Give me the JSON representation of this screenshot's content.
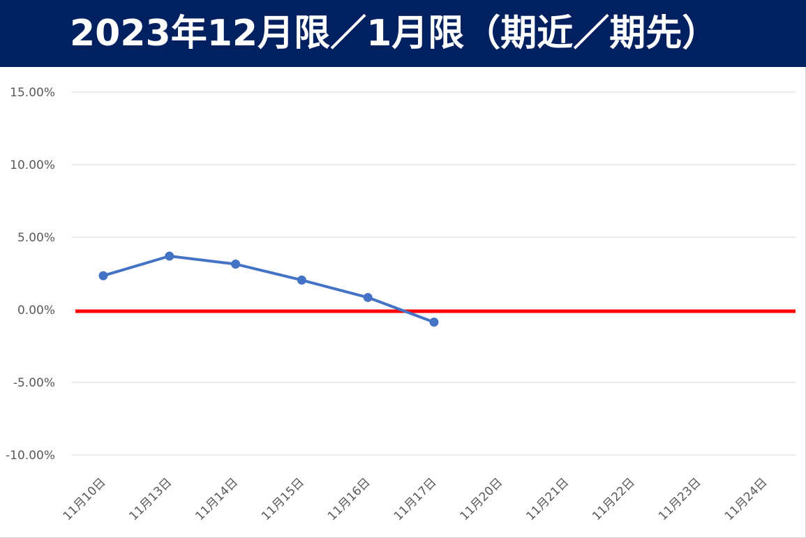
{
  "title": "2023年12月限／1月限（期近／期先）",
  "colors": {
    "title_background": "#002060",
    "title_text": "#ffffff",
    "series_line": "#4472C4",
    "zero_line": "#ff0000",
    "grid": "#d9d9d9",
    "tick_text": "#595959"
  },
  "chart_data": {
    "type": "line",
    "title": "2023年12月限／1月限（期近／期先）",
    "xlabel": "",
    "ylabel": "",
    "categories": [
      "11月10日",
      "11月13日",
      "11月14日",
      "11月15日",
      "11月16日",
      "11月17日",
      "11月20日",
      "11月21日",
      "11月22日",
      "11月23日",
      "11月24日"
    ],
    "series": [
      {
        "values": [
          0.0235,
          0.037,
          0.0315,
          0.0205,
          0.0085,
          -0.0085,
          null,
          null,
          null,
          null,
          null
        ],
        "color": "#4472C4"
      }
    ],
    "reference_line": {
      "value": 0.0,
      "color": "#ff0000"
    },
    "ylim": [
      -0.1,
      0.15
    ],
    "yticks": [
      -0.1,
      -0.05,
      0.0,
      0.05,
      0.1,
      0.15
    ],
    "ytick_labels": [
      "-10.00%",
      "-5.00%",
      "0.00%",
      "5.00%",
      "10.00%",
      "15.00%"
    ],
    "grid": true,
    "legend": "none"
  }
}
